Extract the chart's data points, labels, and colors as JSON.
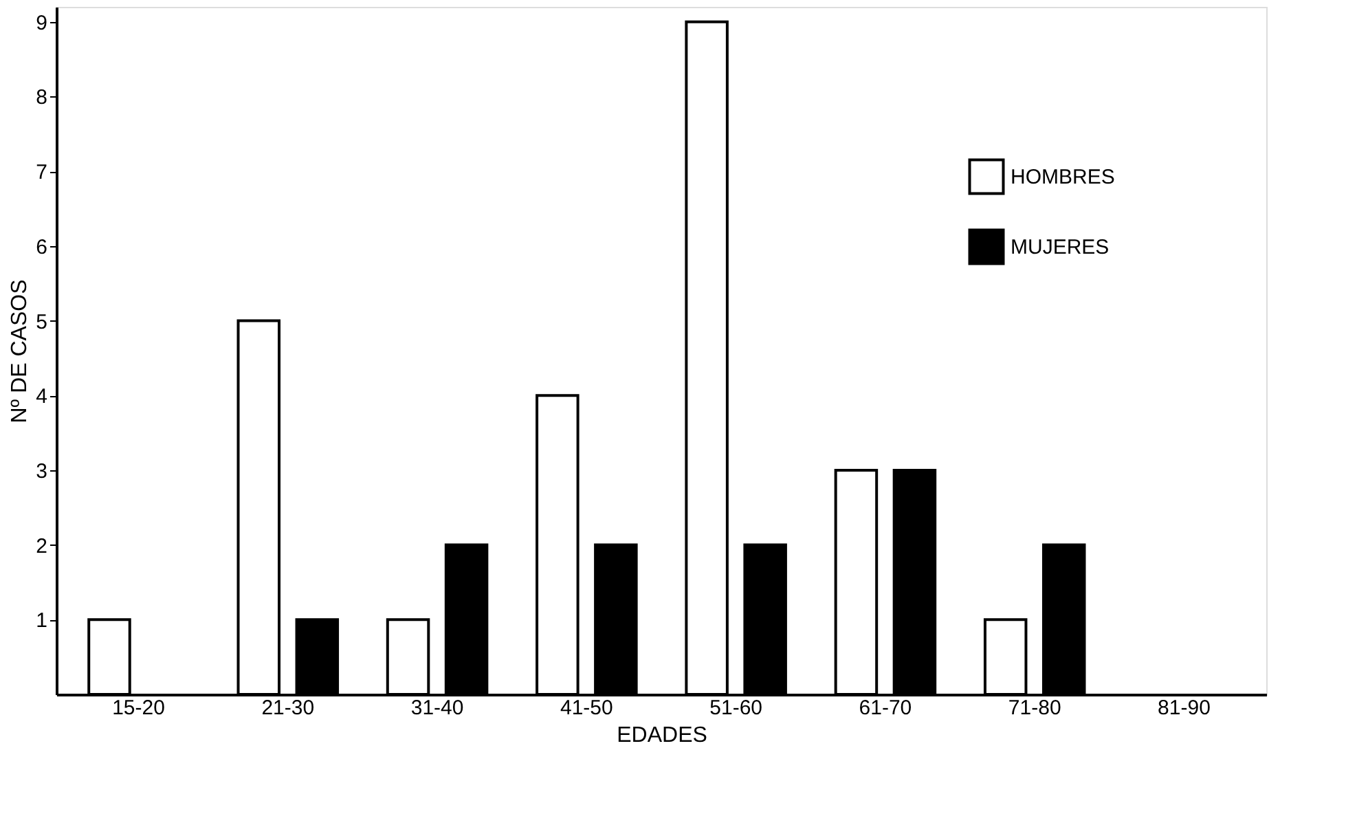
{
  "chart_data": {
    "type": "bar",
    "xlabel": "EDADES",
    "ylabel": "Nº DE CASOS",
    "categories": [
      "15-20",
      "21-30",
      "31-40",
      "41-50",
      "51-60",
      "61-70",
      "71-80",
      "81-90"
    ],
    "series": [
      {
        "name": "HOMBRES",
        "color": "#ffffff",
        "values": [
          1,
          5,
          1,
          4,
          9,
          3,
          1,
          null
        ]
      },
      {
        "name": "MUJERES",
        "color": "#000000",
        "values": [
          null,
          1,
          2,
          2,
          2,
          3,
          2,
          null
        ]
      }
    ],
    "ylim": [
      0,
      9.2
    ],
    "yticks": [
      1,
      2,
      3,
      4,
      5,
      6,
      7,
      8,
      9
    ],
    "grid": false,
    "legend": "top right"
  }
}
